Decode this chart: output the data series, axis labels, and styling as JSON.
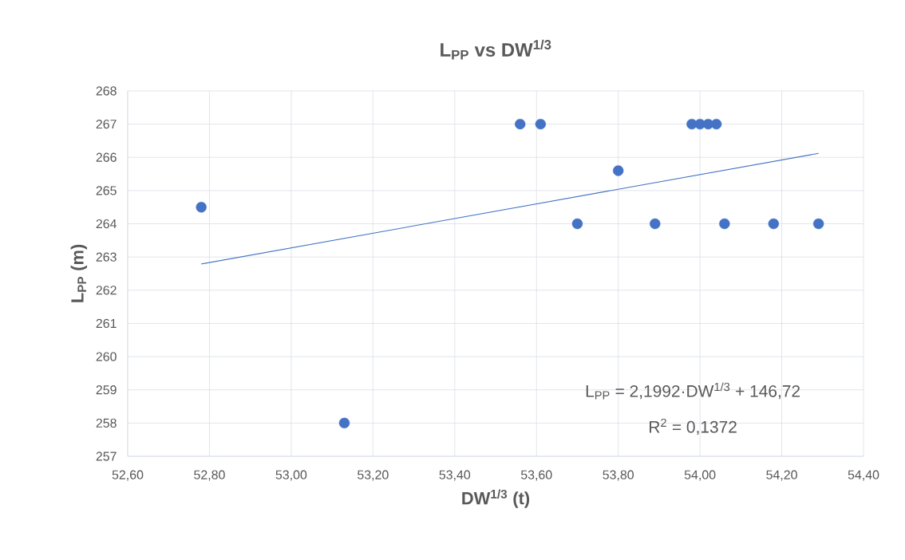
{
  "chart_data": {
    "type": "scatter",
    "title": "L$_{PP}$ vs DW$^{1/3}$",
    "xlabel": "DW$^{1/3}$ (t)",
    "ylabel": "L$_{PP}$ (m)",
    "series": [
      {
        "color": "#4472c4",
        "marker": "circle",
        "x": [
          52.78,
          53.13,
          53.56,
          53.61,
          53.7,
          53.8,
          53.89,
          53.98,
          54.0,
          54.02,
          54.04,
          54.06,
          54.18,
          54.29
        ],
        "values": [
          264.5,
          258,
          267,
          267,
          264,
          265.6,
          264,
          267,
          267,
          267,
          267,
          264,
          264,
          264
        ]
      },
      {
        "type": "line",
        "color": "#4472c4",
        "marker": "none",
        "line_style": "solid",
        "x": [
          52.78,
          54.29
        ],
        "values": [
          262.79,
          266.12
        ]
      }
    ],
    "annotations": [
      "L$_{PP}$ = 2,1992·DW$^{1/3}$ + 146,72",
      "R$^{2}$ = 0,1372"
    ],
    "xlim": [
      52.6,
      54.4
    ],
    "ylim": [
      257,
      268
    ],
    "xticks": [
      {
        "value": 52.6,
        "label": "52,60"
      },
      {
        "value": 52.8,
        "label": "52,80"
      },
      {
        "value": 53.0,
        "label": "53,00"
      },
      {
        "value": 53.2,
        "label": "53,20"
      },
      {
        "value": 53.4,
        "label": "53,40"
      },
      {
        "value": 53.6,
        "label": "53,60"
      },
      {
        "value": 53.8,
        "label": "53,80"
      },
      {
        "value": 54.0,
        "label": "54,00"
      },
      {
        "value": 54.2,
        "label": "54,20"
      },
      {
        "value": 54.4,
        "label": "54,40"
      }
    ],
    "yticks": [
      257,
      258,
      259,
      260,
      261,
      262,
      263,
      264,
      265,
      266,
      267,
      268
    ],
    "grid": true
  }
}
